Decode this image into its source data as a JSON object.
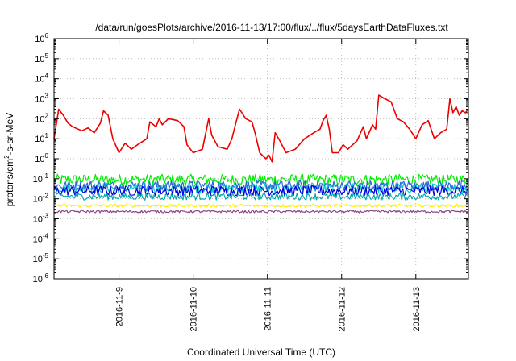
{
  "chart_data": {
    "type": "line",
    "title": "/data/run/goesPlots/archive/2016-11-13/17:00/flux/../flux/5daysEarthDataFluxes.txt",
    "xlabel": "Coordinated Universal Time (UTC)",
    "ylabel": {
      "base": "protons/cm",
      "sup": "2",
      "rest": "-s-sr-MeV"
    },
    "yscale": "log",
    "ylim": [
      1e-06,
      1000000.0
    ],
    "yticks": [
      {
        "value": 1e-06,
        "base": "10",
        "exp": "-6"
      },
      {
        "value": 1e-05,
        "base": "10",
        "exp": "-5"
      },
      {
        "value": 0.0001,
        "base": "10",
        "exp": "-4"
      },
      {
        "value": 0.001,
        "base": "10",
        "exp": "-3"
      },
      {
        "value": 0.01,
        "base": "10",
        "exp": "-2"
      },
      {
        "value": 0.1,
        "base": "10",
        "exp": "-1"
      },
      {
        "value": 1,
        "base": "10",
        "exp": "0"
      },
      {
        "value": 10.0,
        "base": "10",
        "exp": "1"
      },
      {
        "value": 100.0,
        "base": "10",
        "exp": "2"
      },
      {
        "value": 1000.0,
        "base": "10",
        "exp": "3"
      },
      {
        "value": 10000.0,
        "base": "10",
        "exp": "4"
      },
      {
        "value": 100000.0,
        "base": "10",
        "exp": "5"
      },
      {
        "value": 1000000.0,
        "base": "10",
        "exp": "6"
      }
    ],
    "xlim": [
      "2016-11-08 03:00",
      "2016-11-13 17:00"
    ],
    "xticks": [
      {
        "at": "2016-11-09 00:00",
        "label": "2016-11-9"
      },
      {
        "at": "2016-11-10 00:00",
        "label": "2016-11-10"
      },
      {
        "at": "2016-11-11 00:00",
        "label": "2016-11-11"
      },
      {
        "at": "2016-11-12 00:00",
        "label": "2016-11-12"
      },
      {
        "at": "2016-11-13 00:00",
        "label": "2016-11-13"
      }
    ],
    "grid": true,
    "series": [
      {
        "color": "#ee0000",
        "points": [
          [
            "2016-11-08 03:00",
            10
          ],
          [
            "2016-11-08 04:30",
            300
          ],
          [
            "2016-11-08 06:00",
            150
          ],
          [
            "2016-11-08 07:30",
            60
          ],
          [
            "2016-11-08 09:00",
            40
          ],
          [
            "2016-11-08 12:00",
            25
          ],
          [
            "2016-11-08 14:00",
            35
          ],
          [
            "2016-11-08 16:00",
            20
          ],
          [
            "2016-11-08 18:00",
            60
          ],
          [
            "2016-11-08 19:00",
            250
          ],
          [
            "2016-11-08 20:30",
            150
          ],
          [
            "2016-11-08 22:00",
            10
          ],
          [
            "2016-11-09 00:00",
            2
          ],
          [
            "2016-11-09 02:00",
            6
          ],
          [
            "2016-11-09 04:00",
            3
          ],
          [
            "2016-11-09 06:00",
            5
          ],
          [
            "2016-11-09 09:00",
            10
          ],
          [
            "2016-11-09 10:00",
            70
          ],
          [
            "2016-11-09 12:00",
            40
          ],
          [
            "2016-11-09 13:00",
            100
          ],
          [
            "2016-11-09 14:00",
            50
          ],
          [
            "2016-11-09 16:00",
            100
          ],
          [
            "2016-11-09 19:00",
            80
          ],
          [
            "2016-11-09 21:00",
            40
          ],
          [
            "2016-11-09 22:00",
            5
          ],
          [
            "2016-11-10 00:00",
            2
          ],
          [
            "2016-11-10 03:00",
            3
          ],
          [
            "2016-11-10 05:00",
            100
          ],
          [
            "2016-11-10 06:00",
            15
          ],
          [
            "2016-11-10 08:00",
            4
          ],
          [
            "2016-11-10 11:00",
            3
          ],
          [
            "2016-11-10 12:30",
            10
          ],
          [
            "2016-11-10 14:00",
            80
          ],
          [
            "2016-11-10 15:00",
            300
          ],
          [
            "2016-11-10 17:00",
            100
          ],
          [
            "2016-11-10 19:00",
            70
          ],
          [
            "2016-11-10 20:00",
            20
          ],
          [
            "2016-11-10 21:30",
            2
          ],
          [
            "2016-11-10 23:30",
            1
          ],
          [
            "2016-11-11 00:30",
            1.5
          ],
          [
            "2016-11-11 01:30",
            0.7
          ],
          [
            "2016-11-11 02:30",
            20
          ],
          [
            "2016-11-11 04:00",
            8
          ],
          [
            "2016-11-11 06:00",
            2
          ],
          [
            "2016-11-11 09:00",
            3
          ],
          [
            "2016-11-11 12:00",
            10
          ],
          [
            "2016-11-11 15:00",
            20
          ],
          [
            "2016-11-11 17:00",
            30
          ],
          [
            "2016-11-11 18:00",
            80
          ],
          [
            "2016-11-11 19:00",
            150
          ],
          [
            "2016-11-11 20:00",
            30
          ],
          [
            "2016-11-11 21:00",
            2
          ],
          [
            "2016-11-11 23:00",
            2
          ],
          [
            "2016-11-12 00:30",
            5
          ],
          [
            "2016-11-12 02:00",
            3
          ],
          [
            "2016-11-12 05:00",
            8
          ],
          [
            "2016-11-12 07:00",
            40
          ],
          [
            "2016-11-12 08:00",
            10
          ],
          [
            "2016-11-12 10:00",
            50
          ],
          [
            "2016-11-12 11:00",
            30
          ],
          [
            "2016-11-12 12:00",
            1500
          ],
          [
            "2016-11-12 14:00",
            1000
          ],
          [
            "2016-11-12 16:00",
            700
          ],
          [
            "2016-11-12 18:00",
            100
          ],
          [
            "2016-11-12 20:00",
            70
          ],
          [
            "2016-11-12 22:00",
            30
          ],
          [
            "2016-11-13 00:00",
            10
          ],
          [
            "2016-11-13 02:00",
            50
          ],
          [
            "2016-11-13 04:00",
            80
          ],
          [
            "2016-11-13 06:00",
            10
          ],
          [
            "2016-11-13 08:00",
            20
          ],
          [
            "2016-11-13 10:00",
            30
          ],
          [
            "2016-11-13 11:00",
            1000
          ],
          [
            "2016-11-13 12:00",
            200
          ],
          [
            "2016-11-13 13:00",
            400
          ],
          [
            "2016-11-13 14:00",
            150
          ],
          [
            "2016-11-13 15:00",
            250
          ],
          [
            "2016-11-13 16:00",
            200
          ],
          [
            "2016-11-13 17:00",
            300
          ]
        ]
      },
      {
        "color": "#00ee00",
        "level": 0.09,
        "noise": 0.55
      },
      {
        "color": "#00cccc",
        "level": 0.035,
        "noise": 0.5
      },
      {
        "color": "#2c6ad8",
        "level": 0.045,
        "noise": 0.5
      },
      {
        "color": "#0000dd",
        "level": 0.025,
        "noise": 0.5
      },
      {
        "color": "#00aaaa",
        "level": 0.013,
        "noise": 0.35
      },
      {
        "color": "#ffee00",
        "level": 0.0045,
        "noise": 0.15
      },
      {
        "color": "#884488",
        "level": 0.0023,
        "noise": 0.12
      }
    ]
  }
}
